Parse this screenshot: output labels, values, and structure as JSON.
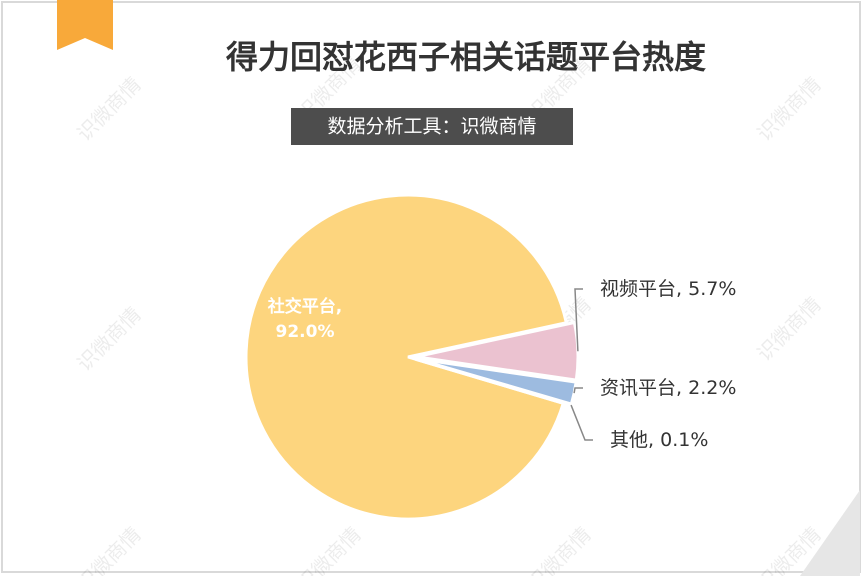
{
  "chart_data": {
    "type": "pie",
    "title": "得力回怼花西子相关话题平台热度",
    "subtitle": "数据分析工具：识微商情",
    "categories": [
      "社交平台",
      "视频平台",
      "资讯平台",
      "其他"
    ],
    "values": [
      92.0,
      5.7,
      2.2,
      0.1
    ],
    "value_labels": [
      "92.0%",
      "5.7%",
      "2.2%",
      "0.1%"
    ],
    "label_separator": ", ",
    "colors": [
      "#fdd57e",
      "#ebc2d0",
      "#9dbbe0",
      "#e8a0a0"
    ],
    "watermark": "识微商情"
  }
}
